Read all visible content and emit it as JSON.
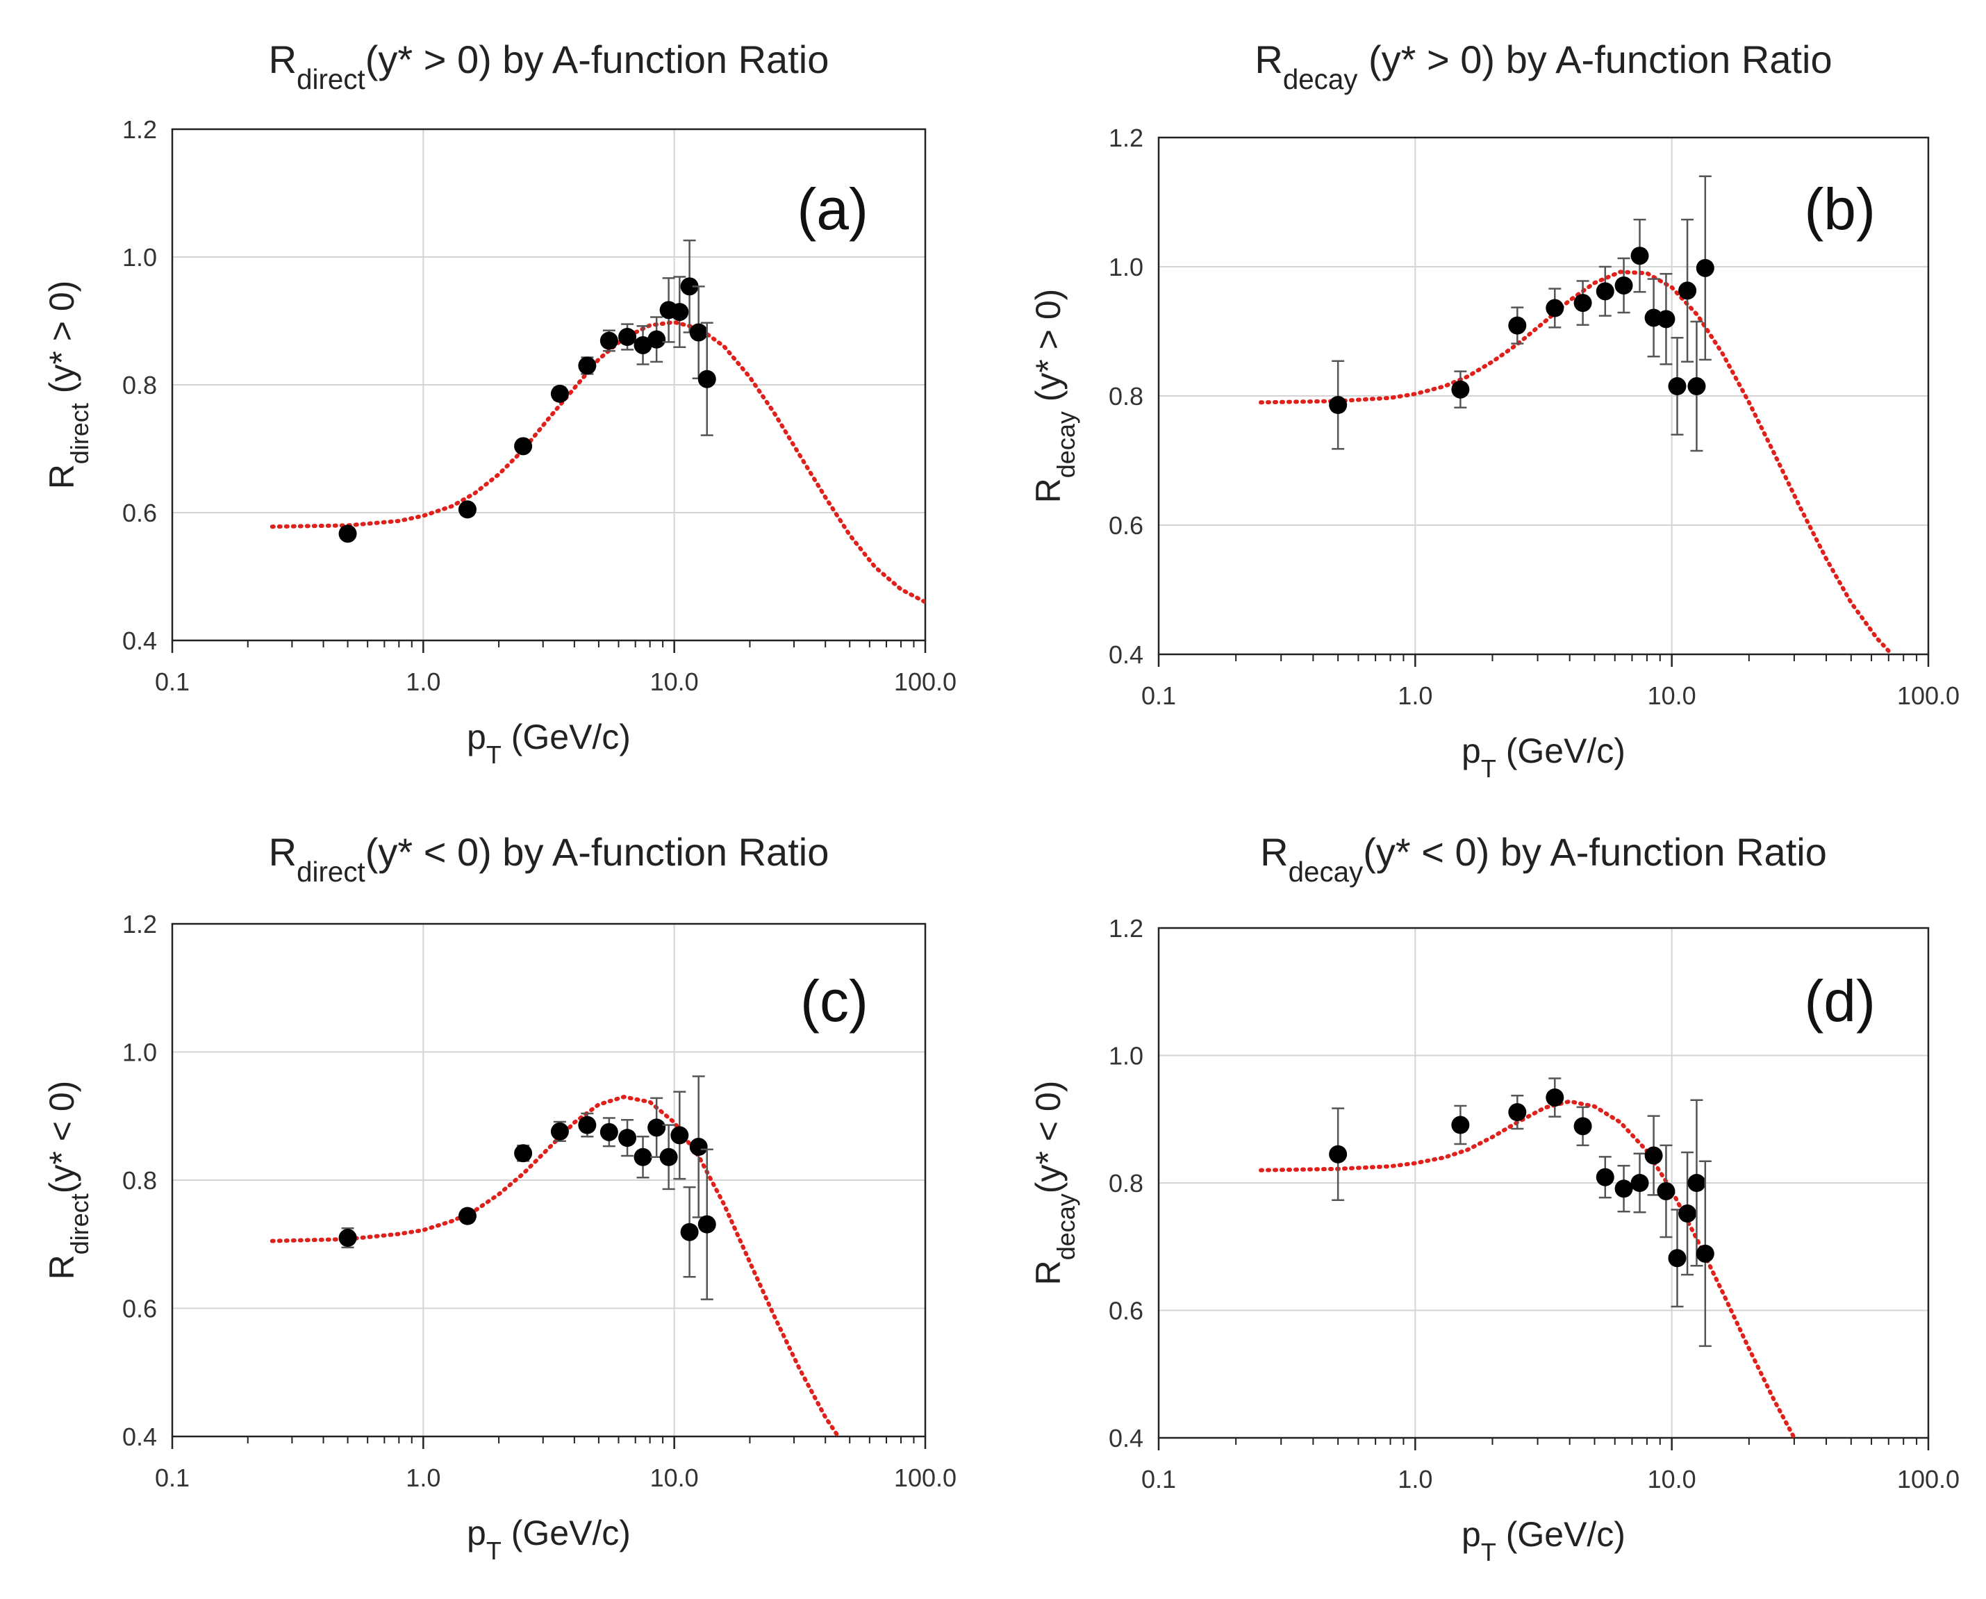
{
  "colors": {
    "fit": "#e0201b",
    "points": "#000000",
    "grid": "#d4d4d4",
    "axis": "#222222"
  },
  "chart_data": [
    {
      "type": "scatter",
      "label": "(a)",
      "title": {
        "main": "R",
        "sub": "direct",
        "rest": "(y* > 0) by A-function Ratio"
      },
      "ylabel": {
        "main": "R",
        "sub": "direct",
        "rest": " (y* > 0)"
      },
      "xlabel": {
        "main": "p",
        "sub": "T",
        "rest": " (GeV/c)"
      },
      "xscale": "log",
      "xlim": [
        0.1,
        100
      ],
      "ylim": [
        0.4,
        1.2
      ],
      "xticks": [
        {
          "v": 0.1,
          "t": "0.1"
        },
        {
          "v": 1,
          "t": "1.0"
        },
        {
          "v": 10,
          "t": "10.0"
        },
        {
          "v": 100,
          "t": "100.0"
        }
      ],
      "yticks": [
        {
          "v": 0.4,
          "t": "0.4"
        },
        {
          "v": 0.6,
          "t": "0.6"
        },
        {
          "v": 0.8,
          "t": "0.8"
        },
        {
          "v": 1.0,
          "t": "1.0"
        },
        {
          "v": 1.2,
          "t": "1.2"
        }
      ],
      "points": [
        {
          "x": 0.5,
          "y": 0.567,
          "err": 0.006
        },
        {
          "x": 1.5,
          "y": 0.605,
          "err": 0.005
        },
        {
          "x": 2.5,
          "y": 0.704,
          "err": 0.008
        },
        {
          "x": 3.5,
          "y": 0.786,
          "err": 0.01
        },
        {
          "x": 4.5,
          "y": 0.83,
          "err": 0.013
        },
        {
          "x": 5.5,
          "y": 0.869,
          "err": 0.016
        },
        {
          "x": 6.5,
          "y": 0.875,
          "err": 0.02
        },
        {
          "x": 7.5,
          "y": 0.862,
          "err": 0.03
        },
        {
          "x": 8.5,
          "y": 0.871,
          "err": 0.035
        },
        {
          "x": 9.5,
          "y": 0.917,
          "err": 0.05
        },
        {
          "x": 10.5,
          "y": 0.914,
          "err": 0.055
        },
        {
          "x": 11.5,
          "y": 0.954,
          "err": 0.072
        },
        {
          "x": 12.5,
          "y": 0.882,
          "err": 0.072
        },
        {
          "x": 13.5,
          "y": 0.809,
          "err": 0.088
        }
      ],
      "fit": [
        {
          "x": 0.25,
          "y": 0.578
        },
        {
          "x": 0.5,
          "y": 0.58
        },
        {
          "x": 0.8,
          "y": 0.587
        },
        {
          "x": 1.0,
          "y": 0.595
        },
        {
          "x": 1.3,
          "y": 0.61
        },
        {
          "x": 1.6,
          "y": 0.63
        },
        {
          "x": 2.0,
          "y": 0.66
        },
        {
          "x": 2.5,
          "y": 0.698
        },
        {
          "x": 3.2,
          "y": 0.75
        },
        {
          "x": 4.0,
          "y": 0.795
        },
        {
          "x": 5.0,
          "y": 0.84
        },
        {
          "x": 6.3,
          "y": 0.873
        },
        {
          "x": 8.0,
          "y": 0.893
        },
        {
          "x": 10.0,
          "y": 0.898
        },
        {
          "x": 12.6,
          "y": 0.888
        },
        {
          "x": 15.8,
          "y": 0.86
        },
        {
          "x": 20.0,
          "y": 0.812
        },
        {
          "x": 25.0,
          "y": 0.756
        },
        {
          "x": 31.6,
          "y": 0.69
        },
        {
          "x": 40.0,
          "y": 0.624
        },
        {
          "x": 50.0,
          "y": 0.565
        },
        {
          "x": 63.0,
          "y": 0.515
        },
        {
          "x": 80.0,
          "y": 0.48
        },
        {
          "x": 100.0,
          "y": 0.46
        }
      ]
    },
    {
      "type": "scatter",
      "label": "(b)",
      "title": {
        "main": "R",
        "sub": "decay",
        "rest": " (y* > 0) by A-function Ratio"
      },
      "ylabel": {
        "main": "R",
        "sub": "decay",
        "rest": " (y* > 0)"
      },
      "xlabel": {
        "main": "p",
        "sub": "T",
        "rest": " (GeV/c)"
      },
      "xscale": "log",
      "xlim": [
        0.1,
        100
      ],
      "ylim": [
        0.4,
        1.2
      ],
      "xticks": [
        {
          "v": 0.1,
          "t": "0.1"
        },
        {
          "v": 1,
          "t": "1.0"
        },
        {
          "v": 10,
          "t": "10.0"
        },
        {
          "v": 100,
          "t": "100.0"
        }
      ],
      "yticks": [
        {
          "v": 0.4,
          "t": "0.4"
        },
        {
          "v": 0.6,
          "t": "0.6"
        },
        {
          "v": 0.8,
          "t": "0.8"
        },
        {
          "v": 1.0,
          "t": "1.0"
        },
        {
          "v": 1.2,
          "t": "1.2"
        }
      ],
      "points": [
        {
          "x": 0.5,
          "y": 0.786,
          "err": 0.068
        },
        {
          "x": 1.5,
          "y": 0.81,
          "err": 0.028
        },
        {
          "x": 2.5,
          "y": 0.909,
          "err": 0.028
        },
        {
          "x": 3.5,
          "y": 0.936,
          "err": 0.03
        },
        {
          "x": 4.5,
          "y": 0.944,
          "err": 0.034
        },
        {
          "x": 5.5,
          "y": 0.962,
          "err": 0.038
        },
        {
          "x": 6.5,
          "y": 0.971,
          "err": 0.042
        },
        {
          "x": 7.5,
          "y": 1.017,
          "err": 0.056
        },
        {
          "x": 8.5,
          "y": 0.921,
          "err": 0.06
        },
        {
          "x": 9.5,
          "y": 0.919,
          "err": 0.07
        },
        {
          "x": 10.5,
          "y": 0.815,
          "err": 0.075
        },
        {
          "x": 11.5,
          "y": 0.963,
          "err": 0.11
        },
        {
          "x": 12.5,
          "y": 0.815,
          "err": 0.1
        },
        {
          "x": 13.5,
          "y": 0.998,
          "err": 0.142
        }
      ],
      "fit": [
        {
          "x": 0.25,
          "y": 0.79
        },
        {
          "x": 0.5,
          "y": 0.792
        },
        {
          "x": 0.8,
          "y": 0.797
        },
        {
          "x": 1.0,
          "y": 0.803
        },
        {
          "x": 1.3,
          "y": 0.815
        },
        {
          "x": 1.6,
          "y": 0.83
        },
        {
          "x": 2.0,
          "y": 0.853
        },
        {
          "x": 2.5,
          "y": 0.88
        },
        {
          "x": 3.2,
          "y": 0.915
        },
        {
          "x": 4.0,
          "y": 0.948
        },
        {
          "x": 5.0,
          "y": 0.975
        },
        {
          "x": 6.3,
          "y": 0.992
        },
        {
          "x": 8.0,
          "y": 0.99
        },
        {
          "x": 10.0,
          "y": 0.968
        },
        {
          "x": 12.6,
          "y": 0.925
        },
        {
          "x": 15.8,
          "y": 0.865
        },
        {
          "x": 20.0,
          "y": 0.79
        },
        {
          "x": 25.0,
          "y": 0.712
        },
        {
          "x": 31.6,
          "y": 0.628
        },
        {
          "x": 40.0,
          "y": 0.548
        },
        {
          "x": 50.0,
          "y": 0.48
        },
        {
          "x": 63.0,
          "y": 0.425
        },
        {
          "x": 72.0,
          "y": 0.4
        }
      ]
    },
    {
      "type": "scatter",
      "label": "(c)",
      "title": {
        "main": "R",
        "sub": "direct",
        "rest": "(y* < 0) by A-function Ratio"
      },
      "ylabel": {
        "main": "R",
        "sub": "direct",
        "rest": "(y* < 0)"
      },
      "xlabel": {
        "main": "p",
        "sub": "T",
        "rest": " (GeV/c)"
      },
      "xscale": "log",
      "xlim": [
        0.1,
        100
      ],
      "ylim": [
        0.4,
        1.2
      ],
      "xticks": [
        {
          "v": 0.1,
          "t": "0.1"
        },
        {
          "v": 1,
          "t": "1.0"
        },
        {
          "v": 10,
          "t": "10.0"
        },
        {
          "v": 100,
          "t": "100.0"
        }
      ],
      "yticks": [
        {
          "v": 0.4,
          "t": "0.4"
        },
        {
          "v": 0.6,
          "t": "0.6"
        },
        {
          "v": 0.8,
          "t": "0.8"
        },
        {
          "v": 1.0,
          "t": "1.0"
        },
        {
          "v": 1.2,
          "t": "1.2"
        }
      ],
      "points": [
        {
          "x": 0.5,
          "y": 0.71,
          "err": 0.015
        },
        {
          "x": 1.5,
          "y": 0.744,
          "err": 0.008
        },
        {
          "x": 2.5,
          "y": 0.842,
          "err": 0.012
        },
        {
          "x": 3.5,
          "y": 0.876,
          "err": 0.015
        },
        {
          "x": 4.5,
          "y": 0.886,
          "err": 0.018
        },
        {
          "x": 5.5,
          "y": 0.875,
          "err": 0.022
        },
        {
          "x": 6.5,
          "y": 0.866,
          "err": 0.028
        },
        {
          "x": 7.5,
          "y": 0.836,
          "err": 0.032
        },
        {
          "x": 8.5,
          "y": 0.882,
          "err": 0.046
        },
        {
          "x": 9.5,
          "y": 0.836,
          "err": 0.05
        },
        {
          "x": 10.5,
          "y": 0.87,
          "err": 0.068
        },
        {
          "x": 11.5,
          "y": 0.719,
          "err": 0.07
        },
        {
          "x": 12.5,
          "y": 0.852,
          "err": 0.11
        },
        {
          "x": 13.5,
          "y": 0.731,
          "err": 0.117
        }
      ],
      "fit": [
        {
          "x": 0.25,
          "y": 0.705
        },
        {
          "x": 0.5,
          "y": 0.708
        },
        {
          "x": 0.8,
          "y": 0.716
        },
        {
          "x": 1.0,
          "y": 0.722
        },
        {
          "x": 1.3,
          "y": 0.736
        },
        {
          "x": 1.6,
          "y": 0.752
        },
        {
          "x": 2.0,
          "y": 0.778
        },
        {
          "x": 2.5,
          "y": 0.81
        },
        {
          "x": 3.2,
          "y": 0.852
        },
        {
          "x": 4.0,
          "y": 0.89
        },
        {
          "x": 5.0,
          "y": 0.918
        },
        {
          "x": 6.3,
          "y": 0.93
        },
        {
          "x": 8.0,
          "y": 0.922
        },
        {
          "x": 10.0,
          "y": 0.89
        },
        {
          "x": 12.6,
          "y": 0.835
        },
        {
          "x": 15.8,
          "y": 0.762
        },
        {
          "x": 20.0,
          "y": 0.672
        },
        {
          "x": 25.0,
          "y": 0.588
        },
        {
          "x": 31.6,
          "y": 0.505
        },
        {
          "x": 40.0,
          "y": 0.43
        },
        {
          "x": 45.0,
          "y": 0.4
        }
      ]
    },
    {
      "type": "scatter",
      "label": "(d)",
      "title": {
        "main": "R",
        "sub": "decay",
        "rest": "(y* < 0) by A-function Ratio"
      },
      "ylabel": {
        "main": "R",
        "sub": "decay",
        "rest": "(y* < 0)"
      },
      "xlabel": {
        "main": "p",
        "sub": "T",
        "rest": " (GeV/c)"
      },
      "xscale": "log",
      "xlim": [
        0.1,
        100
      ],
      "ylim": [
        0.4,
        1.2
      ],
      "xticks": [
        {
          "v": 0.1,
          "t": "0.1"
        },
        {
          "v": 1,
          "t": "1.0"
        },
        {
          "v": 10,
          "t": "10.0"
        },
        {
          "v": 100,
          "t": "100.0"
        }
      ],
      "yticks": [
        {
          "v": 0.4,
          "t": "0.4"
        },
        {
          "v": 0.6,
          "t": "0.6"
        },
        {
          "v": 0.8,
          "t": "0.8"
        },
        {
          "v": 1.0,
          "t": "1.0"
        },
        {
          "v": 1.2,
          "t": "1.2"
        }
      ],
      "points": [
        {
          "x": 0.5,
          "y": 0.845,
          "err": 0.072
        },
        {
          "x": 1.5,
          "y": 0.891,
          "err": 0.03
        },
        {
          "x": 2.5,
          "y": 0.911,
          "err": 0.026
        },
        {
          "x": 3.5,
          "y": 0.934,
          "err": 0.03
        },
        {
          "x": 4.5,
          "y": 0.889,
          "err": 0.03
        },
        {
          "x": 5.5,
          "y": 0.809,
          "err": 0.032
        },
        {
          "x": 6.5,
          "y": 0.791,
          "err": 0.036
        },
        {
          "x": 7.5,
          "y": 0.8,
          "err": 0.046
        },
        {
          "x": 8.5,
          "y": 0.843,
          "err": 0.062
        },
        {
          "x": 9.5,
          "y": 0.787,
          "err": 0.072
        },
        {
          "x": 10.5,
          "y": 0.682,
          "err": 0.076
        },
        {
          "x": 11.5,
          "y": 0.752,
          "err": 0.096
        },
        {
          "x": 12.5,
          "y": 0.8,
          "err": 0.13
        },
        {
          "x": 13.5,
          "y": 0.689,
          "err": 0.145
        }
      ],
      "fit": [
        {
          "x": 0.25,
          "y": 0.82
        },
        {
          "x": 0.5,
          "y": 0.822
        },
        {
          "x": 0.8,
          "y": 0.826
        },
        {
          "x": 1.0,
          "y": 0.831
        },
        {
          "x": 1.3,
          "y": 0.84
        },
        {
          "x": 1.6,
          "y": 0.852
        },
        {
          "x": 2.0,
          "y": 0.872
        },
        {
          "x": 2.5,
          "y": 0.895
        },
        {
          "x": 3.2,
          "y": 0.918
        },
        {
          "x": 4.0,
          "y": 0.928
        },
        {
          "x": 5.0,
          "y": 0.92
        },
        {
          "x": 6.3,
          "y": 0.895
        },
        {
          "x": 8.0,
          "y": 0.85
        },
        {
          "x": 10.0,
          "y": 0.788
        },
        {
          "x": 12.6,
          "y": 0.71
        },
        {
          "x": 15.8,
          "y": 0.628
        },
        {
          "x": 20.0,
          "y": 0.54
        },
        {
          "x": 25.0,
          "y": 0.46
        },
        {
          "x": 30.0,
          "y": 0.4
        }
      ]
    }
  ]
}
